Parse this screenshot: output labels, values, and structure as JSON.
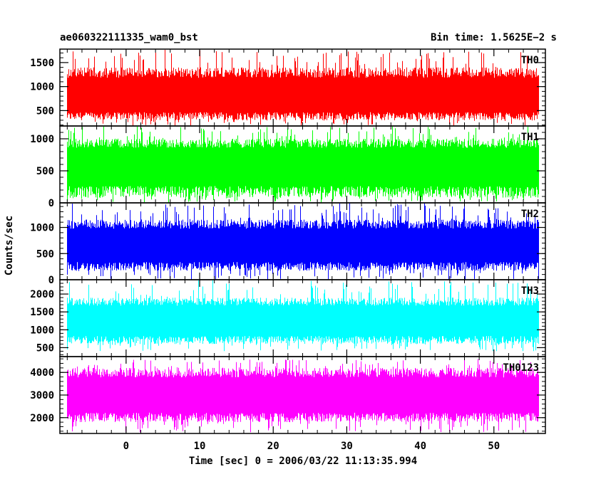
{
  "header": {
    "title": "ae060322111335_wam0_bst",
    "bin_time": "Bin time: 1.5625E−2 s"
  },
  "axes": {
    "ylabel": "Counts/sec",
    "xlabel": "Time [sec] 0 = 2006/03/22 11:13:35.994",
    "x_range": [
      -9,
      57
    ],
    "x_ticks": [
      0,
      10,
      20,
      30,
      40,
      50
    ],
    "x_tick_labels": [
      "0",
      "10",
      "20",
      "30",
      "40",
      "50"
    ]
  },
  "chart_data": {
    "type": "line",
    "x_start": -8.0,
    "x_end": 56.0,
    "bin_time": 0.015625,
    "series": [
      {
        "name": "TH0",
        "color": "#ff0000",
        "ylim": [
          180,
          1780
        ],
        "yticks": [
          500,
          1000,
          1500
        ],
        "ytick_labels": [
          "500",
          "1000",
          "1500"
        ],
        "mean": 780,
        "typical_max": 1400,
        "typical_min": 300,
        "peak_max": 1780,
        "peak_min": 180
      },
      {
        "name": "TH1",
        "color": "#00ff00",
        "ylim": [
          0,
          1200
        ],
        "yticks": [
          0,
          500,
          1000
        ],
        "ytick_labels": [
          "0",
          "500",
          "1000"
        ],
        "mean": 600,
        "typical_max": 1000,
        "typical_min": 80,
        "peak_max": 1200,
        "peak_min": 0
      },
      {
        "name": "TH2",
        "color": "#0000ff",
        "ylim": [
          0,
          1470
        ],
        "yticks": [
          0,
          500,
          1000
        ],
        "ytick_labels": [
          "0",
          "500",
          "1000"
        ],
        "mean": 650,
        "typical_max": 1150,
        "typical_min": 170,
        "peak_max": 1470,
        "peak_min": 0
      },
      {
        "name": "TH3",
        "color": "#00ffff",
        "ylim": [
          250,
          2400
        ],
        "yticks": [
          500,
          1000,
          1500,
          2000
        ],
        "ytick_labels": [
          "500",
          "1000",
          "1500",
          "2000"
        ],
        "mean": 1250,
        "typical_max": 1900,
        "typical_min": 600,
        "peak_max": 2400,
        "peak_min": 400
      },
      {
        "name": "TH0123",
        "color": "#ff00ff",
        "ylim": [
          1300,
          4700
        ],
        "yticks": [
          2000,
          3000,
          4000
        ],
        "ytick_labels": [
          "2000",
          "3000",
          "4000"
        ],
        "mean": 3000,
        "typical_max": 4200,
        "typical_min": 1800,
        "peak_max": 4600,
        "peak_min": 1350
      }
    ]
  }
}
